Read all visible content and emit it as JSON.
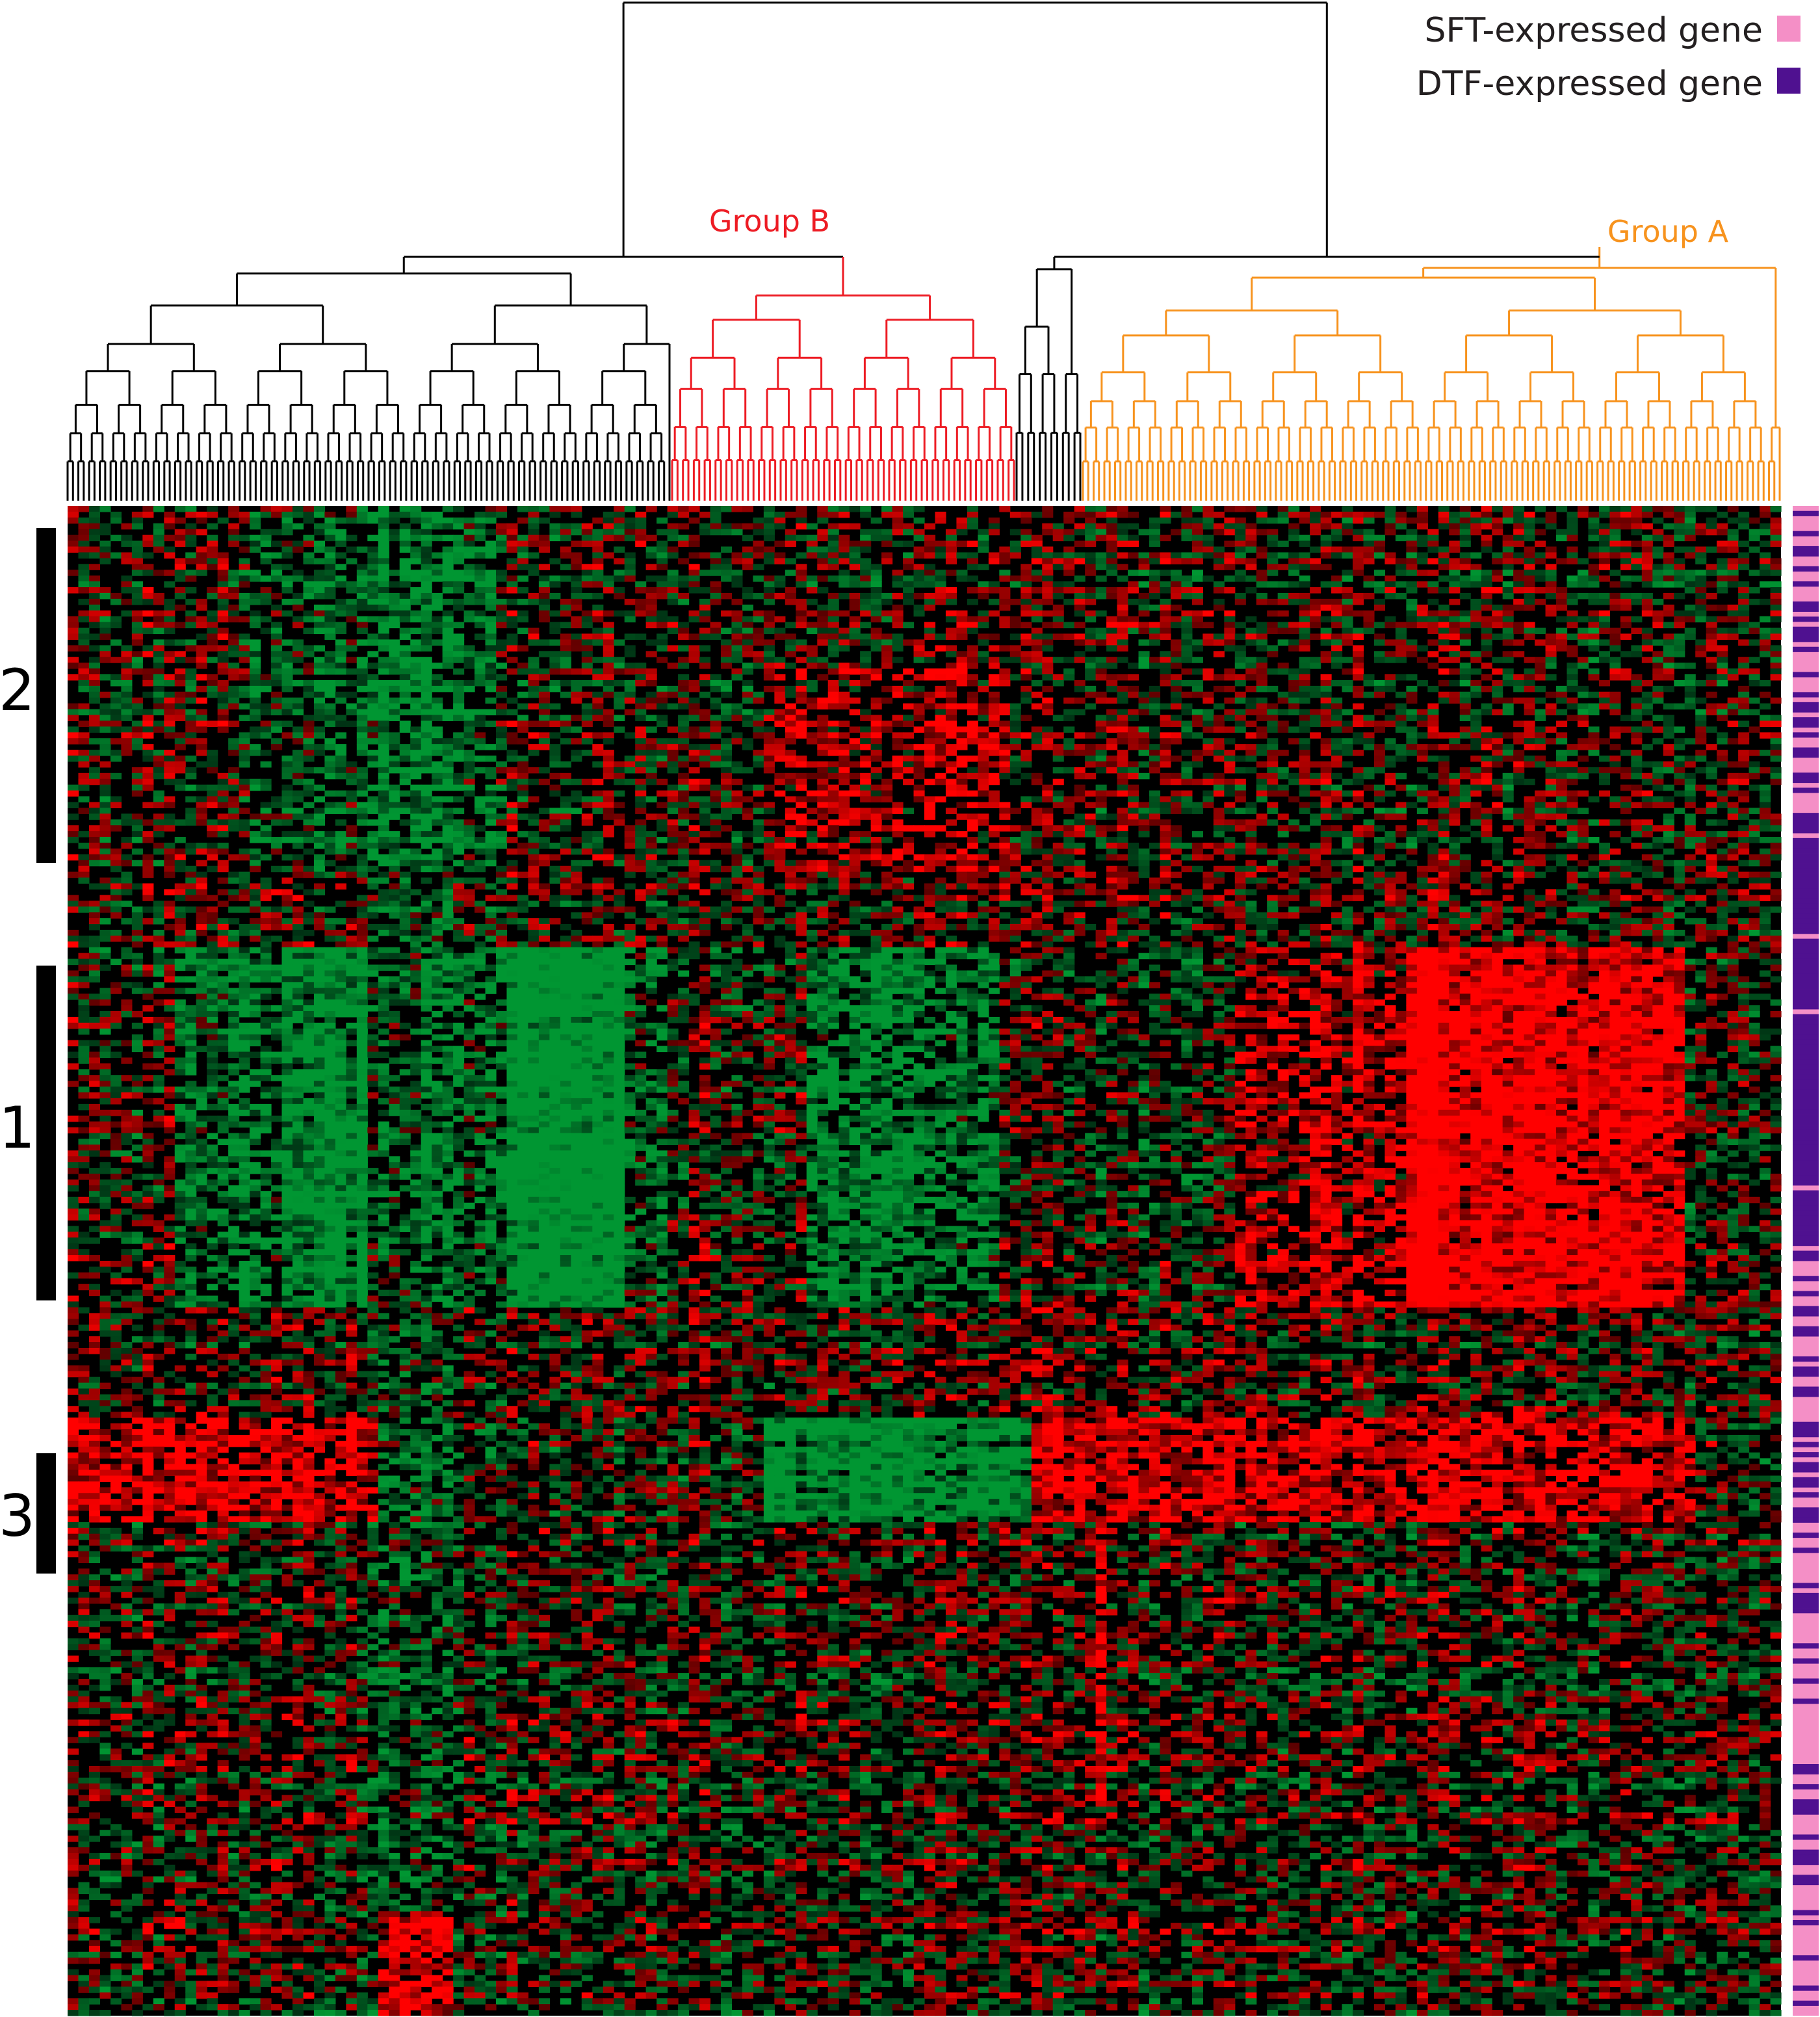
{
  "legend": {
    "items": [
      {
        "label": "SFT-expressed gene",
        "color": "#f48fc6"
      },
      {
        "label": "DTF-expressed gene",
        "color": "#4f1190"
      }
    ]
  },
  "chart_data": {
    "type": "heatmap",
    "title": "",
    "xlabel": "",
    "ylabel": "",
    "color_scale": {
      "low": "#0c8f30",
      "mid": "#000000",
      "high": "#ff0000"
    },
    "grid": false,
    "legend_position": "top-right",
    "dendrogram": {
      "position": "top",
      "groups": [
        {
          "label": "Group B",
          "color": "#ed1c24"
        },
        {
          "label": "Group A",
          "color": "#f7931e"
        }
      ],
      "ungrouped_color": "#000000"
    },
    "row_clusters": [
      {
        "label": "2"
      },
      {
        "label": "1"
      },
      {
        "label": "3"
      }
    ],
    "row_annotation": {
      "categories": [
        "SFT-expressed gene",
        "DTF-expressed gene"
      ]
    }
  }
}
